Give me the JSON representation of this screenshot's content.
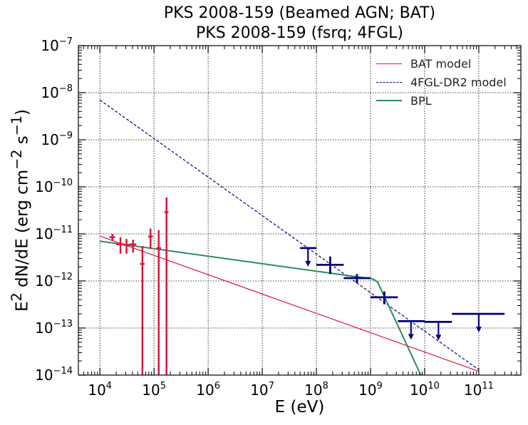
{
  "chart_data": {
    "type": "scatter",
    "title": "PKS 2008-159 (Beamed AGN; BAT)",
    "subtitle": "PKS 2008-159 (fsrq; 4FGL)",
    "xlabel": "E (eV)",
    "ylabel_html": "E<sup>2</sup> dN/dE (erg cm<sup>−2</sup> s<sup>−1</sup>)",
    "xscale": "log",
    "yscale": "log",
    "xlim": [
      4000,
      600000000000.0
    ],
    "ylim": [
      1e-14,
      1e-07
    ],
    "grid": true,
    "legend_position": "top-right",
    "x_tick_labels": [
      {
        "base": "10",
        "exp": "4",
        "value": 10000.0
      },
      {
        "base": "10",
        "exp": "5",
        "value": 100000.0
      },
      {
        "base": "10",
        "exp": "6",
        "value": 1000000.0
      },
      {
        "base": "10",
        "exp": "7",
        "value": 10000000.0
      },
      {
        "base": "10",
        "exp": "8",
        "value": 100000000.0
      },
      {
        "base": "10",
        "exp": "9",
        "value": 1000000000.0
      },
      {
        "base": "10",
        "exp": "10",
        "value": 10000000000.0
      },
      {
        "base": "10",
        "exp": "11",
        "value": 100000000000.0
      }
    ],
    "y_tick_labels": [
      {
        "base": "10",
        "exp": "−14",
        "value": 1e-14
      },
      {
        "base": "10",
        "exp": "−13",
        "value": 1e-13
      },
      {
        "base": "10",
        "exp": "−12",
        "value": 1e-12
      },
      {
        "base": "10",
        "exp": "−11",
        "value": 1e-11
      },
      {
        "base": "10",
        "exp": "−10",
        "value": 1e-10
      },
      {
        "base": "10",
        "exp": "−9",
        "value": 1e-09
      },
      {
        "base": "10",
        "exp": "−8",
        "value": 1e-08
      },
      {
        "base": "10",
        "exp": "−7",
        "value": 1e-07
      }
    ],
    "series": [
      {
        "name": "BAT model",
        "kind": "line",
        "color": "#dc143c",
        "style": "solid",
        "width": 1.2,
        "x": [
          10000.0,
          100000000000.0
        ],
        "y": [
          9e-12,
          1.2e-14
        ]
      },
      {
        "name": "4FGL-DR2 model",
        "kind": "line",
        "color": "#000080",
        "style": "dashed",
        "width": 1.2,
        "x": [
          10000.0,
          100000000000.0
        ],
        "y": [
          7e-09,
          1.3e-14
        ]
      },
      {
        "name": "BPL",
        "kind": "line",
        "color": "#2e8b57",
        "style": "solid",
        "width": 2,
        "x": [
          10000.0,
          1100000000.0,
          1350000000.0,
          8500000000.0
        ],
        "y": [
          7e-12,
          1.1e-12,
          9.5e-13,
          1e-14
        ]
      }
    ],
    "bat_points": {
      "color": "#dc143c",
      "points": [
        {
          "x": 17000,
          "y": 8.5e-12,
          "ylo": 7e-12,
          "yhi": 1e-11,
          "xlo": 15000,
          "xhi": 19000
        },
        {
          "x": 24000,
          "y": 6e-12,
          "ylo": 3.8e-12,
          "yhi": 8.5e-12,
          "xlo": 20000,
          "xhi": 28000
        },
        {
          "x": 31000,
          "y": 5.8e-12,
          "ylo": 3.8e-12,
          "yhi": 7.8e-12,
          "xlo": 28000,
          "xhi": 35000
        },
        {
          "x": 41000,
          "y": 6e-12,
          "ylo": 4e-12,
          "yhi": 7.5e-12,
          "xlo": 35000,
          "xhi": 47000
        },
        {
          "x": 61000,
          "y": 2.3e-12,
          "ylo": 1e-14,
          "yhi": 5.5e-12,
          "xlo": 55000,
          "xhi": 67000
        },
        {
          "x": 86000,
          "y": 8.8e-12,
          "ylo": 4.8e-12,
          "yhi": 1.3e-11,
          "xlo": 78000,
          "xhi": 95000
        },
        {
          "x": 122000,
          "y": 5e-12,
          "ylo": 1e-14,
          "yhi": 1.2e-11,
          "xlo": 110000,
          "xhi": 135000
        },
        {
          "x": 170000,
          "y": 2.9e-11,
          "ylo": 1e-14,
          "yhi": 6e-11,
          "xlo": 155000,
          "xhi": 185000
        }
      ]
    },
    "lat_points": {
      "color": "#000080",
      "points": [
        {
          "x": 70000000.0,
          "y": 5e-12,
          "xlo": 50000000.0,
          "xhi": 100000000.0,
          "upper_limit": true
        },
        {
          "x": 180000000.0,
          "y": 2.2e-12,
          "ylo": 1.4e-12,
          "yhi": 3.3e-12,
          "xlo": 100000000.0,
          "xhi": 320000000.0
        },
        {
          "x": 560000000.0,
          "y": 1.15e-12,
          "ylo": 9e-13,
          "yhi": 1.4e-12,
          "xlo": 320000000.0,
          "xhi": 1000000000.0
        },
        {
          "x": 1800000000.0,
          "y": 4.5e-13,
          "ylo": 3.2e-13,
          "yhi": 6e-13,
          "xlo": 1000000000.0,
          "xhi": 3200000000.0
        },
        {
          "x": 5600000000.0,
          "y": 1.4e-13,
          "xlo": 3200000000.0,
          "xhi": 10000000000.0,
          "upper_limit": true
        },
        {
          "x": 18000000000.0,
          "y": 1.35e-13,
          "xlo": 10000000000.0,
          "xhi": 32000000000.0,
          "upper_limit": true
        },
        {
          "x": 100000000000.0,
          "y": 2e-13,
          "xlo": 32000000000.0,
          "xhi": 300000000000.0,
          "upper_limit": true
        }
      ]
    }
  }
}
